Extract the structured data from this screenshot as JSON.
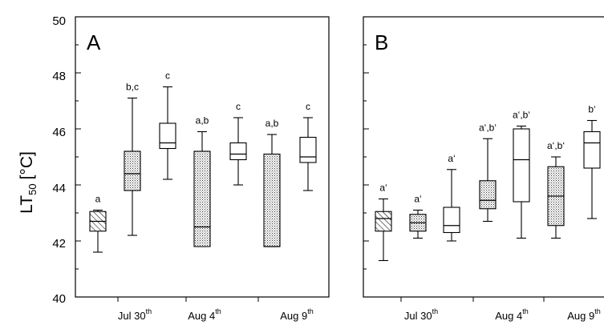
{
  "chart_data": {
    "type": "box",
    "ylabel_main": "LT",
    "ylabel_sub": "50",
    "ylabel_unit": "[°C]",
    "ylim": [
      40,
      50
    ],
    "yticks": [
      "40",
      "42",
      "44",
      "46",
      "48",
      "50"
    ],
    "grid": false,
    "date_labels": [
      {
        "main": "Jul 30",
        "sup": "th"
      },
      {
        "main": "Aug 4",
        "sup": "th"
      },
      {
        "main": "Aug 9",
        "sup": "th"
      }
    ],
    "panels": [
      {
        "label": "A",
        "boxes": [
          {
            "min": 41.6,
            "q1": 42.35,
            "median": 42.7,
            "q3": 43.05,
            "max": 43.1,
            "fill": "hatch",
            "sig": "a"
          },
          {
            "min": 42.2,
            "q1": 43.8,
            "median": 44.4,
            "q3": 45.2,
            "max": 47.1,
            "fill": "dots",
            "sig": "b,c"
          },
          {
            "min": 44.2,
            "q1": 45.3,
            "median": 45.5,
            "q3": 46.2,
            "max": 47.5,
            "fill": "white",
            "sig": "c"
          },
          {
            "min": 41.8,
            "q1": 41.8,
            "median": 42.5,
            "q3": 45.2,
            "max": 45.9,
            "fill": "dots",
            "sig": "a,b"
          },
          {
            "min": 44.0,
            "q1": 44.9,
            "median": 45.1,
            "q3": 45.5,
            "max": 46.4,
            "fill": "white",
            "sig": "c"
          },
          {
            "min": 41.8,
            "q1": 41.8,
            "median": 41.8,
            "q3": 45.1,
            "max": 45.8,
            "fill": "dots",
            "sig": "a,b"
          },
          {
            "min": 43.8,
            "q1": 44.8,
            "median": 45.0,
            "q3": 45.7,
            "max": 46.4,
            "fill": "white",
            "sig": "c"
          }
        ]
      },
      {
        "label": "B",
        "boxes": [
          {
            "min": 41.3,
            "q1": 42.35,
            "median": 42.8,
            "q3": 43.05,
            "max": 43.5,
            "fill": "hatch",
            "sig": "a‘"
          },
          {
            "min": 42.1,
            "q1": 42.35,
            "median": 42.65,
            "q3": 42.95,
            "max": 43.1,
            "fill": "dots",
            "sig": "a‘"
          },
          {
            "min": 42.0,
            "q1": 42.3,
            "median": 42.55,
            "q3": 43.2,
            "max": 44.55,
            "fill": "white",
            "sig": "a‘"
          },
          {
            "min": 42.7,
            "q1": 43.15,
            "median": 43.45,
            "q3": 44.15,
            "max": 45.65,
            "fill": "dots",
            "sig": "a‘,b‘"
          },
          {
            "min": 42.1,
            "q1": 43.4,
            "median": 44.9,
            "q3": 46.0,
            "max": 46.1,
            "fill": "white",
            "sig": "a‘,b‘"
          },
          {
            "min": 42.1,
            "q1": 42.55,
            "median": 43.6,
            "q3": 44.65,
            "max": 45.0,
            "fill": "dots",
            "sig": "a‘,b‘"
          },
          {
            "min": 42.8,
            "q1": 44.6,
            "median": 45.5,
            "q3": 45.9,
            "max": 46.3,
            "fill": "white",
            "sig": "b‘"
          }
        ]
      }
    ]
  }
}
